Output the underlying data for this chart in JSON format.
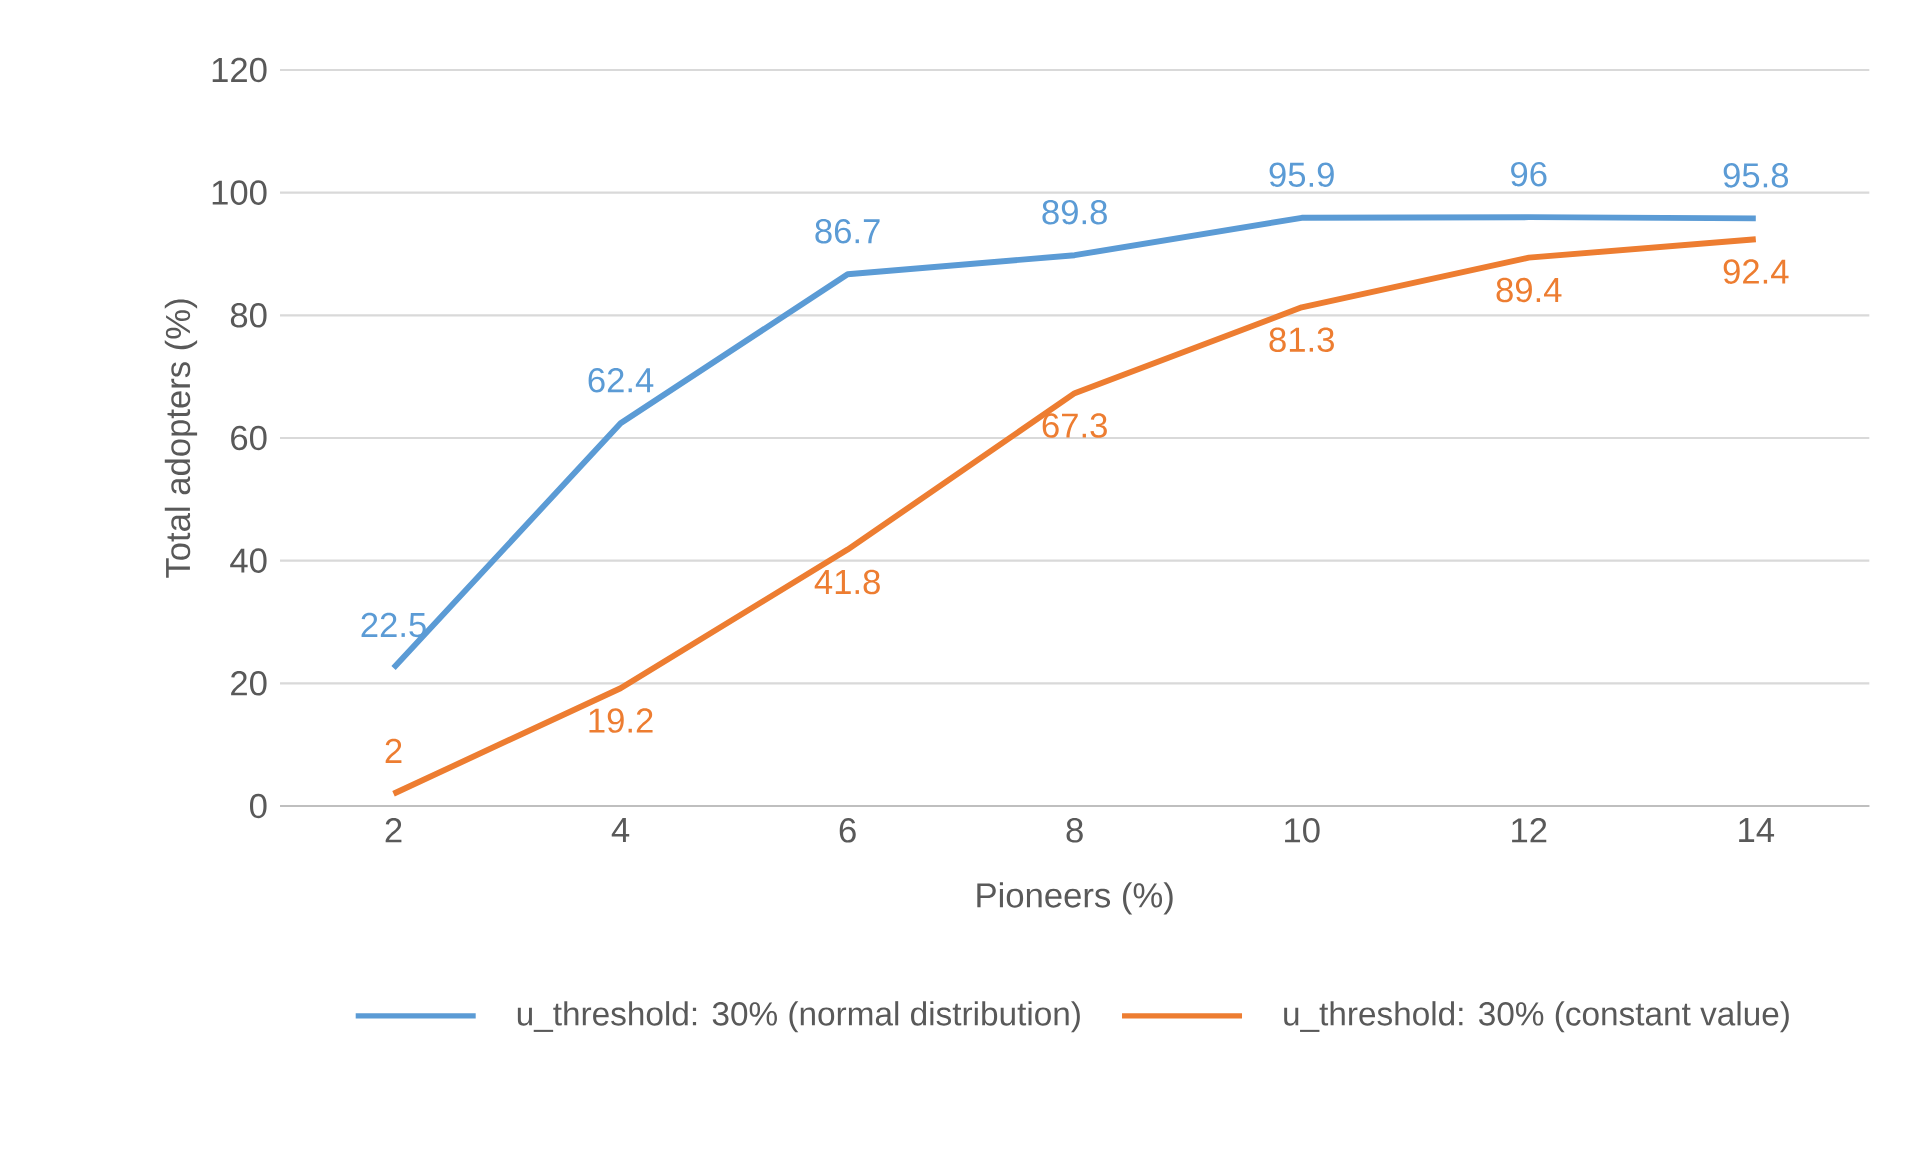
{
  "chart_data": {
    "type": "line",
    "xlabel": "Pioneers (%)",
    "ylabel": "Total adopters (%)",
    "categories": [
      "2",
      "4",
      "6",
      "8",
      "10",
      "12",
      "14"
    ],
    "series": [
      {
        "name": "u_threshold: 30% (normal distribution)",
        "color": "#5b9bd5",
        "values": [
          22.5,
          62.4,
          86.7,
          89.8,
          95.9,
          96,
          95.8
        ]
      },
      {
        "name": "u_threshold: 30% (constant value)",
        "color": "#ed7d31",
        "values": [
          2,
          19.2,
          41.8,
          67.3,
          81.3,
          89.4,
          92.4
        ]
      }
    ],
    "ylim": [
      0,
      120
    ],
    "yticks": [
      0,
      20,
      40,
      60,
      80,
      100,
      120
    ],
    "grid": "y",
    "legend": "bottom",
    "data_labels": true,
    "marker": "none",
    "line_style": "solid"
  }
}
